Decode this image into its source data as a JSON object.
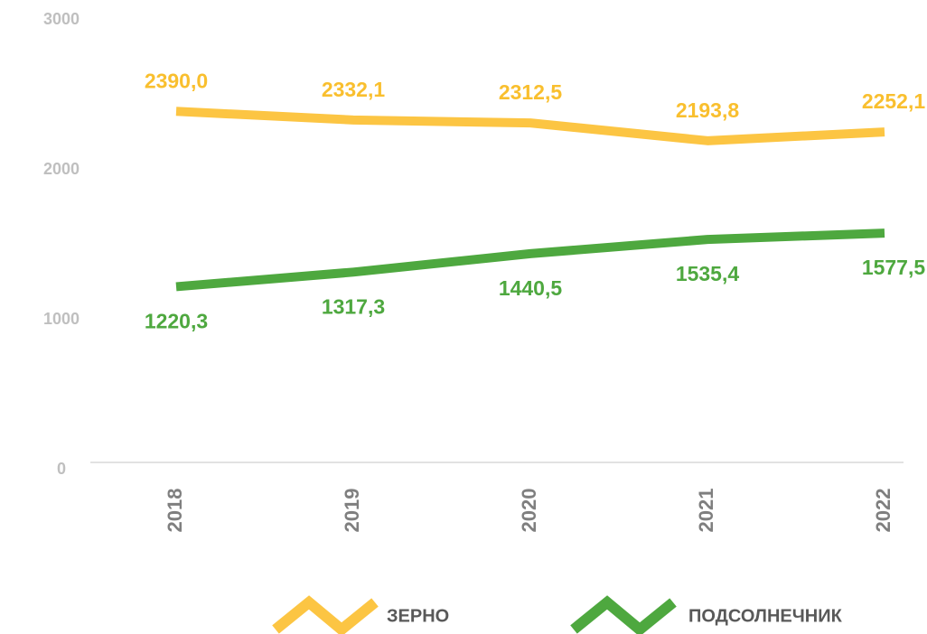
{
  "chart_data": {
    "type": "line",
    "categories": [
      "2018",
      "2019",
      "2020",
      "2021",
      "2022"
    ],
    "series": [
      {
        "name": "ЗЕРНО",
        "color": "#fcc543",
        "values": [
          2390.0,
          2332.1,
          2312.5,
          2193.8,
          2252.1
        ],
        "value_labels": [
          "2390,0",
          "2332,1",
          "2312,5",
          "2193,8",
          "2252,1"
        ]
      },
      {
        "name": "ПОДСОЛНЕЧНИК",
        "color": "#4ea83f",
        "values": [
          1220.3,
          1317.3,
          1440.5,
          1535.4,
          1577.5
        ],
        "value_labels": [
          "1220,3",
          "1317,3",
          "1440,5",
          "1535,4",
          "1577,5"
        ]
      }
    ],
    "ylim": [
      0,
      3000
    ],
    "yticks": [
      0,
      1000,
      2000,
      3000
    ],
    "grid": false
  }
}
